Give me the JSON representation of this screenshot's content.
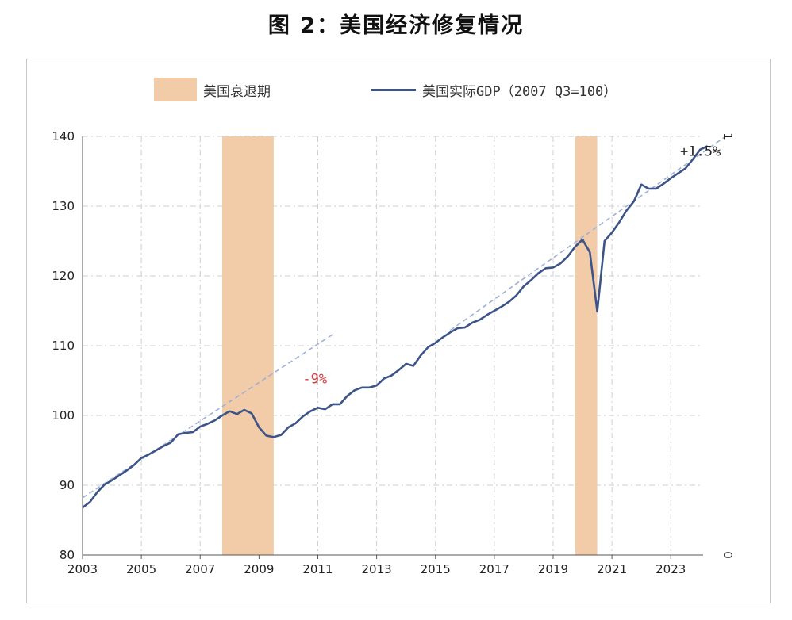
{
  "title": "图 2：美国经济修复情况",
  "legend": {
    "recession_label": "美国衰退期",
    "gdp_label": "美国实际GDP（2007 Q3=100）"
  },
  "colors": {
    "line": "#3c5488",
    "trend": "#9fb0d6",
    "recession": "#f2cba9",
    "annot_red": "#d23a3a",
    "grid": "#cfcfcf"
  },
  "chart_data": {
    "type": "line",
    "title": "图 2：美国经济修复情况",
    "xlabel": "",
    "ylabel": "",
    "xlim": [
      2003,
      2024.1
    ],
    "ylim": [
      80,
      140
    ],
    "yticks": [
      80,
      90,
      100,
      110,
      120,
      130,
      140
    ],
    "xticks": [
      2003,
      2005,
      2007,
      2009,
      2011,
      2013,
      2015,
      2017,
      2019,
      2021,
      2023
    ],
    "grid": true,
    "legend_position": "top",
    "right_axis_tick_labels": [
      "1",
      "0"
    ],
    "recessions": [
      {
        "start": 2007.75,
        "end": 2009.5
      },
      {
        "start": 2019.75,
        "end": 2020.5
      }
    ],
    "series": [
      {
        "name": "美国实际GDP（2007 Q3=100）",
        "points": [
          [
            2003.0,
            86.8
          ],
          [
            2003.25,
            87.6
          ],
          [
            2003.5,
            89.0
          ],
          [
            2003.75,
            90.1
          ],
          [
            2004.0,
            90.7
          ],
          [
            2004.25,
            91.4
          ],
          [
            2004.5,
            92.1
          ],
          [
            2004.75,
            92.9
          ],
          [
            2005.0,
            93.9
          ],
          [
            2005.25,
            94.4
          ],
          [
            2005.5,
            95.0
          ],
          [
            2005.75,
            95.6
          ],
          [
            2006.0,
            96.1
          ],
          [
            2006.25,
            97.3
          ],
          [
            2006.5,
            97.5
          ],
          [
            2006.75,
            97.6
          ],
          [
            2007.0,
            98.4
          ],
          [
            2007.25,
            98.8
          ],
          [
            2007.5,
            99.3
          ],
          [
            2007.75,
            100.0
          ],
          [
            2008.0,
            100.6
          ],
          [
            2008.25,
            100.2
          ],
          [
            2008.5,
            100.8
          ],
          [
            2008.75,
            100.3
          ],
          [
            2009.0,
            98.3
          ],
          [
            2009.25,
            97.1
          ],
          [
            2009.5,
            96.9
          ],
          [
            2009.75,
            97.2
          ],
          [
            2010.0,
            98.3
          ],
          [
            2010.25,
            98.9
          ],
          [
            2010.5,
            99.9
          ],
          [
            2010.75,
            100.6
          ],
          [
            2011.0,
            101.1
          ],
          [
            2011.25,
            100.9
          ],
          [
            2011.5,
            101.6
          ],
          [
            2011.75,
            101.6
          ],
          [
            2012.0,
            102.8
          ],
          [
            2012.25,
            103.6
          ],
          [
            2012.5,
            104.0
          ],
          [
            2012.75,
            104.0
          ],
          [
            2013.0,
            104.3
          ],
          [
            2013.25,
            105.3
          ],
          [
            2013.5,
            105.7
          ],
          [
            2013.75,
            106.5
          ],
          [
            2014.0,
            107.4
          ],
          [
            2014.25,
            107.1
          ],
          [
            2014.5,
            108.6
          ],
          [
            2014.75,
            109.8
          ],
          [
            2015.0,
            110.4
          ],
          [
            2015.25,
            111.2
          ],
          [
            2015.5,
            111.9
          ],
          [
            2015.75,
            112.5
          ],
          [
            2016.0,
            112.6
          ],
          [
            2016.25,
            113.3
          ],
          [
            2016.5,
            113.7
          ],
          [
            2016.75,
            114.4
          ],
          [
            2017.0,
            115.0
          ],
          [
            2017.25,
            115.6
          ],
          [
            2017.5,
            116.3
          ],
          [
            2017.75,
            117.2
          ],
          [
            2018.0,
            118.5
          ],
          [
            2018.25,
            119.4
          ],
          [
            2018.5,
            120.4
          ],
          [
            2018.75,
            121.1
          ],
          [
            2019.0,
            121.2
          ],
          [
            2019.25,
            121.8
          ],
          [
            2019.5,
            122.8
          ],
          [
            2019.75,
            124.2
          ],
          [
            2020.0,
            125.2
          ],
          [
            2020.25,
            123.4
          ],
          [
            2020.5,
            114.9
          ],
          [
            2020.75,
            125.0
          ],
          [
            2021.0,
            126.2
          ],
          [
            2021.25,
            127.7
          ],
          [
            2021.5,
            129.4
          ],
          [
            2021.75,
            130.7
          ],
          [
            2022.0,
            133.1
          ],
          [
            2022.25,
            132.5
          ],
          [
            2022.5,
            132.5
          ],
          [
            2022.75,
            133.2
          ],
          [
            2023.0,
            134.0
          ],
          [
            2023.25,
            134.7
          ],
          [
            2023.5,
            135.4
          ],
          [
            2023.75,
            136.7
          ],
          [
            2024.0,
            138.1
          ],
          [
            2024.25,
            138.6
          ]
        ]
      }
    ],
    "trendlines": [
      {
        "points": [
          [
            2003.0,
            88.2
          ],
          [
            2011.5,
            111.6
          ]
        ]
      },
      {
        "points": [
          [
            2015.5,
            112.2
          ],
          [
            2024.9,
            140.1
          ]
        ]
      }
    ],
    "annotations": [
      {
        "text": "-9%",
        "x": 2010.9,
        "y": 104.6,
        "color": "#d23a3a"
      },
      {
        "text": "+1.5%",
        "x": 2024.7,
        "y": 137.2,
        "color": "#222222"
      }
    ]
  }
}
